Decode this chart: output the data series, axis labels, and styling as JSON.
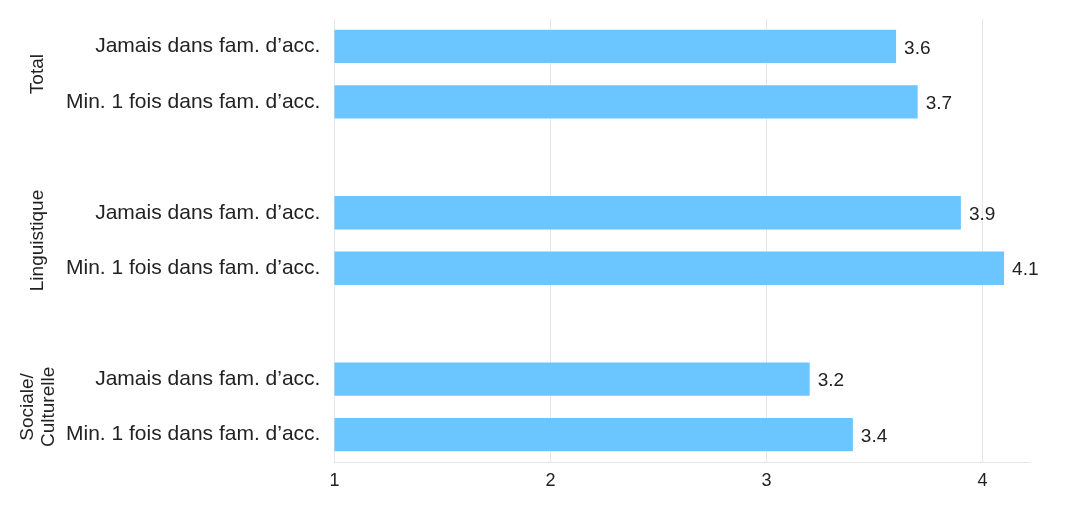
{
  "chart_data": {
    "type": "bar",
    "orientation": "horizontal",
    "categories": [
      "Jamais dans fam. d’acc.",
      "Min. 1 fois dans fam. d’acc.",
      null,
      "Jamais dans fam. d’acc.",
      "Min. 1 fois dans fam. d’acc.",
      null,
      "Jamais dans fam. d’acc.",
      "Min. 1 fois dans fam. d’acc."
    ],
    "values": [
      3.6,
      3.7,
      null,
      3.9,
      4.1,
      null,
      3.2,
      3.4
    ],
    "color": "#6bc5ff",
    "xlim": [
      1,
      4.22
    ],
    "xticks": [
      1,
      2,
      3,
      4
    ],
    "grid": "x",
    "data_labels": true,
    "legend": false,
    "annotations": [
      "Total",
      "Linguistique",
      "Sociale/\nCulturelle"
    ]
  }
}
